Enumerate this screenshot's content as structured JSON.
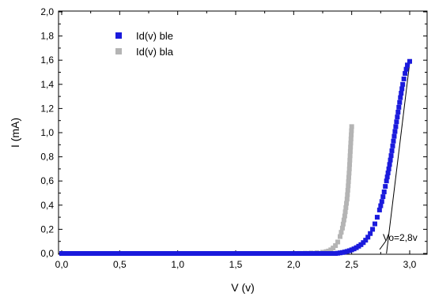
{
  "chart_data": {
    "type": "scatter",
    "title": "",
    "xlabel": "V (v)",
    "ylabel": "I (mA)",
    "xlim": [
      0.0,
      3.0
    ],
    "ylim": [
      0.0,
      2.0
    ],
    "x_ticks": [
      "0,0",
      "0,5",
      "1,0",
      "1,5",
      "2,0",
      "2,5",
      "3,0"
    ],
    "y_ticks": [
      "0,0",
      "0,2",
      "0,4",
      "0,6",
      "0,8",
      "1,0",
      "1,2",
      "1,4",
      "1,6",
      "1,8",
      "2,0"
    ],
    "x_tick_values": [
      0.0,
      0.5,
      1.0,
      1.5,
      2.0,
      2.5,
      3.0
    ],
    "y_tick_values": [
      0.0,
      0.2,
      0.4,
      0.6,
      0.8,
      1.0,
      1.2,
      1.4,
      1.6,
      1.8,
      2.0
    ],
    "grid": false,
    "legend_position": "top-left",
    "series": [
      {
        "name": "Id(v) ble",
        "color": "#1a1adc",
        "marker": "square",
        "x": [
          0.0,
          2.36,
          2.38,
          2.4,
          2.42,
          2.44,
          2.46,
          2.48,
          2.5,
          2.52,
          2.54,
          2.56,
          2.58,
          2.6,
          2.62,
          2.64,
          2.66,
          2.68,
          2.7,
          2.72,
          2.74,
          2.76,
          2.78,
          2.8,
          2.82,
          2.84,
          2.86,
          2.88,
          2.9,
          2.92,
          2.94,
          2.96,
          2.98,
          3.0
        ],
        "y": [
          0.0,
          0.0,
          0.002,
          0.005,
          0.008,
          0.012,
          0.017,
          0.023,
          0.03,
          0.038,
          0.048,
          0.06,
          0.073,
          0.09,
          0.11,
          0.135,
          0.165,
          0.2,
          0.245,
          0.3,
          0.36,
          0.43,
          0.51,
          0.6,
          0.7,
          0.81,
          0.93,
          1.05,
          1.17,
          1.29,
          1.4,
          1.49,
          1.56,
          1.59
        ]
      },
      {
        "name": "Id(v) bla",
        "color": "#b4b4b4",
        "marker": "square",
        "x": [
          0.0,
          2.0,
          2.1,
          2.2,
          2.25,
          2.28,
          2.3,
          2.32,
          2.34,
          2.36,
          2.38,
          2.4,
          2.42,
          2.44,
          2.46,
          2.47,
          2.48,
          2.49,
          2.5
        ],
        "y": [
          0.0,
          0.0,
          0.002,
          0.006,
          0.01,
          0.015,
          0.02,
          0.03,
          0.045,
          0.065,
          0.095,
          0.14,
          0.21,
          0.31,
          0.45,
          0.56,
          0.7,
          0.88,
          1.05
        ]
      }
    ],
    "annotations": [
      {
        "text": "Vo=2,8v",
        "x": 2.8,
        "y": 0.0
      }
    ]
  }
}
